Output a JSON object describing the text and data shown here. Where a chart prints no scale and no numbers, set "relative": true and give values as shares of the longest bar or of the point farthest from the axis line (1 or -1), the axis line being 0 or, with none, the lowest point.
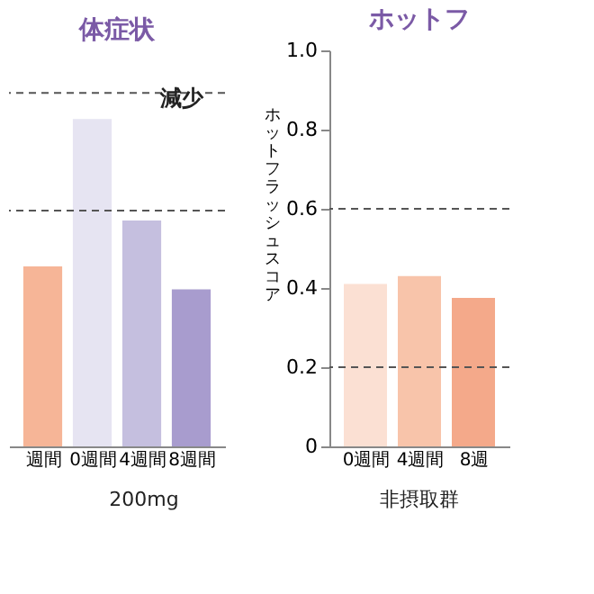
{
  "chart_data": [
    {
      "type": "bar",
      "title": "体症状",
      "relative": true,
      "categories": [
        "週間",
        "0週間",
        "4週間",
        "8週間"
      ],
      "colors": [
        "#f6b597",
        "#e6e4f2",
        "#c5bfdf",
        "#a89cce"
      ],
      "values": [
        0.55,
        1,
        0.69,
        0.48
      ],
      "ref_lines": [
        {
          "axis": "y",
          "value": 1.08,
          "line_style": "dashed"
        },
        {
          "axis": "y",
          "value": 0.72,
          "line_style": "dashed"
        }
      ],
      "annotations": [
        "減少",
        "200mg"
      ]
    },
    {
      "type": "bar",
      "title": "ホットフ",
      "ylabel": "ホットフラッシュスコア",
      "categories": [
        "0週間",
        "4週間",
        "8週"
      ],
      "colors": [
        "#fbe0d3",
        "#f8c4aa",
        "#f4a98a"
      ],
      "values": [
        0.41,
        0.43,
        0.375
      ],
      "ylim": [
        0,
        1.0
      ],
      "yticks": [
        0,
        0.2,
        0.4,
        0.6,
        0.8,
        {
          "value": 1.0,
          "label": "1.0"
        }
      ],
      "ref_lines": [
        {
          "axis": "y",
          "value": 0.2,
          "line_style": "dashed"
        },
        {
          "axis": "y",
          "value": 0.6,
          "line_style": "dashed"
        }
      ],
      "annotations": [
        "非摂取群"
      ]
    }
  ]
}
